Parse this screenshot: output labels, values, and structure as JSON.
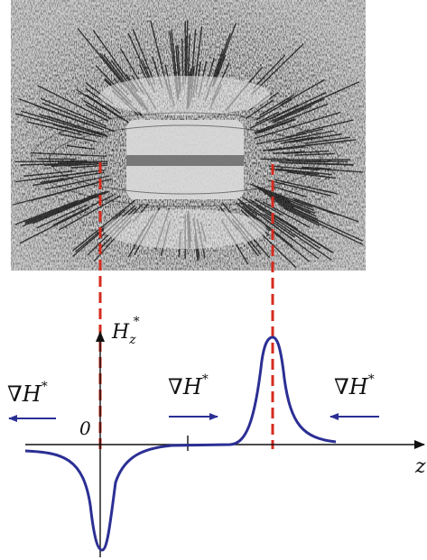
{
  "photo": {
    "subject": "iron-filings-field-pattern"
  },
  "axis": {
    "vertical_label": "H",
    "vertical_sub": "z",
    "vertical_sup": "*",
    "origin_label": "0",
    "horizontal_label": "z"
  },
  "gradients": [
    {
      "symbol": "∇",
      "label": "H",
      "sup": "*",
      "arrow": "left"
    },
    {
      "symbol": "∇",
      "label": "H",
      "sup": "*",
      "arrow": "right"
    },
    {
      "symbol": "∇",
      "label": "H",
      "sup": "*",
      "arrow": "left"
    }
  ],
  "colors": {
    "curve": "#2b2f94",
    "guide": "#d52b1e",
    "arrow": "#2b2f94",
    "axis": "#111111"
  }
}
